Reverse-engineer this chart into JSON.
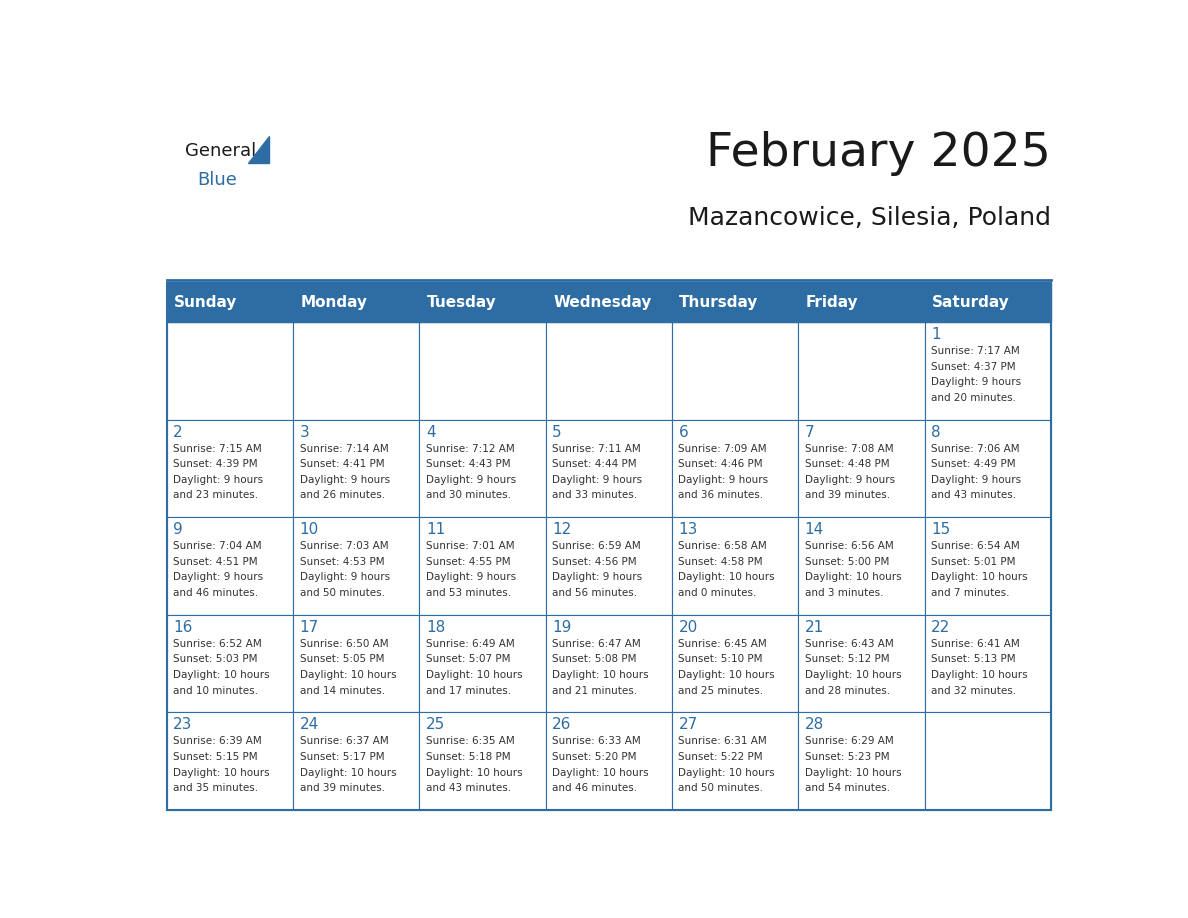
{
  "title": "February 2025",
  "subtitle": "Mazancowice, Silesia, Poland",
  "header_bg": "#2E6DA4",
  "header_text_color": "#FFFFFF",
  "cell_bg": "#FFFFFF",
  "border_color": "#2E6DA4",
  "day_headers": [
    "Sunday",
    "Monday",
    "Tuesday",
    "Wednesday",
    "Thursday",
    "Friday",
    "Saturday"
  ],
  "title_color": "#1a1a1a",
  "subtitle_color": "#1a1a1a",
  "day_number_color": "#2E6DA4",
  "cell_text_color": "#333333",
  "logo_general_color": "#1a1a1a",
  "logo_blue_color": "#2E6DA4",
  "weeks": [
    [
      {
        "day": null,
        "lines": []
      },
      {
        "day": null,
        "lines": []
      },
      {
        "day": null,
        "lines": []
      },
      {
        "day": null,
        "lines": []
      },
      {
        "day": null,
        "lines": []
      },
      {
        "day": null,
        "lines": []
      },
      {
        "day": 1,
        "lines": [
          "Sunrise: 7:17 AM",
          "Sunset: 4:37 PM",
          "Daylight: 9 hours",
          "and 20 minutes."
        ]
      }
    ],
    [
      {
        "day": 2,
        "lines": [
          "Sunrise: 7:15 AM",
          "Sunset: 4:39 PM",
          "Daylight: 9 hours",
          "and 23 minutes."
        ]
      },
      {
        "day": 3,
        "lines": [
          "Sunrise: 7:14 AM",
          "Sunset: 4:41 PM",
          "Daylight: 9 hours",
          "and 26 minutes."
        ]
      },
      {
        "day": 4,
        "lines": [
          "Sunrise: 7:12 AM",
          "Sunset: 4:43 PM",
          "Daylight: 9 hours",
          "and 30 minutes."
        ]
      },
      {
        "day": 5,
        "lines": [
          "Sunrise: 7:11 AM",
          "Sunset: 4:44 PM",
          "Daylight: 9 hours",
          "and 33 minutes."
        ]
      },
      {
        "day": 6,
        "lines": [
          "Sunrise: 7:09 AM",
          "Sunset: 4:46 PM",
          "Daylight: 9 hours",
          "and 36 minutes."
        ]
      },
      {
        "day": 7,
        "lines": [
          "Sunrise: 7:08 AM",
          "Sunset: 4:48 PM",
          "Daylight: 9 hours",
          "and 39 minutes."
        ]
      },
      {
        "day": 8,
        "lines": [
          "Sunrise: 7:06 AM",
          "Sunset: 4:49 PM",
          "Daylight: 9 hours",
          "and 43 minutes."
        ]
      }
    ],
    [
      {
        "day": 9,
        "lines": [
          "Sunrise: 7:04 AM",
          "Sunset: 4:51 PM",
          "Daylight: 9 hours",
          "and 46 minutes."
        ]
      },
      {
        "day": 10,
        "lines": [
          "Sunrise: 7:03 AM",
          "Sunset: 4:53 PM",
          "Daylight: 9 hours",
          "and 50 minutes."
        ]
      },
      {
        "day": 11,
        "lines": [
          "Sunrise: 7:01 AM",
          "Sunset: 4:55 PM",
          "Daylight: 9 hours",
          "and 53 minutes."
        ]
      },
      {
        "day": 12,
        "lines": [
          "Sunrise: 6:59 AM",
          "Sunset: 4:56 PM",
          "Daylight: 9 hours",
          "and 56 minutes."
        ]
      },
      {
        "day": 13,
        "lines": [
          "Sunrise: 6:58 AM",
          "Sunset: 4:58 PM",
          "Daylight: 10 hours",
          "and 0 minutes."
        ]
      },
      {
        "day": 14,
        "lines": [
          "Sunrise: 6:56 AM",
          "Sunset: 5:00 PM",
          "Daylight: 10 hours",
          "and 3 minutes."
        ]
      },
      {
        "day": 15,
        "lines": [
          "Sunrise: 6:54 AM",
          "Sunset: 5:01 PM",
          "Daylight: 10 hours",
          "and 7 minutes."
        ]
      }
    ],
    [
      {
        "day": 16,
        "lines": [
          "Sunrise: 6:52 AM",
          "Sunset: 5:03 PM",
          "Daylight: 10 hours",
          "and 10 minutes."
        ]
      },
      {
        "day": 17,
        "lines": [
          "Sunrise: 6:50 AM",
          "Sunset: 5:05 PM",
          "Daylight: 10 hours",
          "and 14 minutes."
        ]
      },
      {
        "day": 18,
        "lines": [
          "Sunrise: 6:49 AM",
          "Sunset: 5:07 PM",
          "Daylight: 10 hours",
          "and 17 minutes."
        ]
      },
      {
        "day": 19,
        "lines": [
          "Sunrise: 6:47 AM",
          "Sunset: 5:08 PM",
          "Daylight: 10 hours",
          "and 21 minutes."
        ]
      },
      {
        "day": 20,
        "lines": [
          "Sunrise: 6:45 AM",
          "Sunset: 5:10 PM",
          "Daylight: 10 hours",
          "and 25 minutes."
        ]
      },
      {
        "day": 21,
        "lines": [
          "Sunrise: 6:43 AM",
          "Sunset: 5:12 PM",
          "Daylight: 10 hours",
          "and 28 minutes."
        ]
      },
      {
        "day": 22,
        "lines": [
          "Sunrise: 6:41 AM",
          "Sunset: 5:13 PM",
          "Daylight: 10 hours",
          "and 32 minutes."
        ]
      }
    ],
    [
      {
        "day": 23,
        "lines": [
          "Sunrise: 6:39 AM",
          "Sunset: 5:15 PM",
          "Daylight: 10 hours",
          "and 35 minutes."
        ]
      },
      {
        "day": 24,
        "lines": [
          "Sunrise: 6:37 AM",
          "Sunset: 5:17 PM",
          "Daylight: 10 hours",
          "and 39 minutes."
        ]
      },
      {
        "day": 25,
        "lines": [
          "Sunrise: 6:35 AM",
          "Sunset: 5:18 PM",
          "Daylight: 10 hours",
          "and 43 minutes."
        ]
      },
      {
        "day": 26,
        "lines": [
          "Sunrise: 6:33 AM",
          "Sunset: 5:20 PM",
          "Daylight: 10 hours",
          "and 46 minutes."
        ]
      },
      {
        "day": 27,
        "lines": [
          "Sunrise: 6:31 AM",
          "Sunset: 5:22 PM",
          "Daylight: 10 hours",
          "and 50 minutes."
        ]
      },
      {
        "day": 28,
        "lines": [
          "Sunrise: 6:29 AM",
          "Sunset: 5:23 PM",
          "Daylight: 10 hours",
          "and 54 minutes."
        ]
      },
      {
        "day": null,
        "lines": []
      }
    ]
  ]
}
